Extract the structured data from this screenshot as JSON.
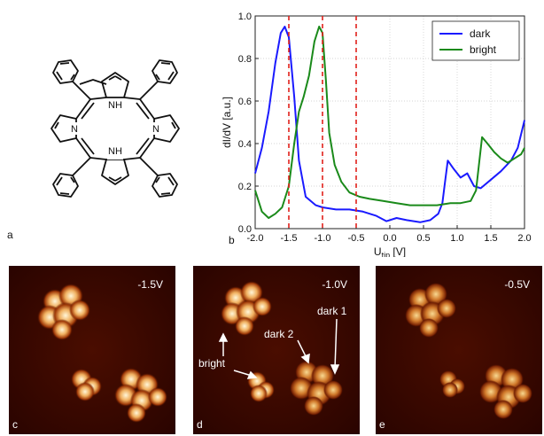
{
  "panels": {
    "a": "a",
    "b": "b",
    "c": "c",
    "d": "d",
    "e": "e"
  },
  "molecule": {
    "nh_top": "N\nH",
    "nh_bottom": "N\nH",
    "n_left": "N",
    "n_right": "N",
    "nh_label": "NH",
    "n_label": "N"
  },
  "chart_data": {
    "type": "line",
    "xlabel_main": "U",
    "xlabel_sub": "tip",
    "xlabel_unit": " [V]",
    "ylabel": "dI/dV [a.u.]",
    "xlim": [
      -2.0,
      2.0
    ],
    "ylim": [
      0.0,
      1.0
    ],
    "xticks": [
      "-2.0",
      "-1.5",
      "-1.0",
      "-0.5",
      "0.0",
      "0.5",
      "1.0",
      "1.5",
      "2.0"
    ],
    "yticks": [
      "0.0",
      "0.2",
      "0.4",
      "0.6",
      "0.8",
      "1.0"
    ],
    "grid": true,
    "legend_position": "top-right",
    "vlines": [
      -1.5,
      -1.0,
      -0.5
    ],
    "series": [
      {
        "name": "dark",
        "color": "#1a1aff",
        "points": [
          [
            -2.0,
            0.26
          ],
          [
            -1.9,
            0.38
          ],
          [
            -1.8,
            0.55
          ],
          [
            -1.7,
            0.78
          ],
          [
            -1.62,
            0.92
          ],
          [
            -1.56,
            0.95
          ],
          [
            -1.5,
            0.9
          ],
          [
            -1.42,
            0.62
          ],
          [
            -1.35,
            0.32
          ],
          [
            -1.25,
            0.15
          ],
          [
            -1.1,
            0.11
          ],
          [
            -1.0,
            0.1
          ],
          [
            -0.8,
            0.09
          ],
          [
            -0.6,
            0.09
          ],
          [
            -0.4,
            0.08
          ],
          [
            -0.2,
            0.06
          ],
          [
            -0.05,
            0.035
          ],
          [
            0.1,
            0.05
          ],
          [
            0.25,
            0.04
          ],
          [
            0.45,
            0.03
          ],
          [
            0.6,
            0.04
          ],
          [
            0.72,
            0.07
          ],
          [
            0.78,
            0.12
          ],
          [
            0.82,
            0.22
          ],
          [
            0.86,
            0.32
          ],
          [
            0.95,
            0.28
          ],
          [
            1.05,
            0.24
          ],
          [
            1.15,
            0.26
          ],
          [
            1.25,
            0.2
          ],
          [
            1.35,
            0.19
          ],
          [
            1.5,
            0.23
          ],
          [
            1.65,
            0.27
          ],
          [
            1.8,
            0.32
          ],
          [
            1.9,
            0.38
          ],
          [
            2.0,
            0.51
          ]
        ]
      },
      {
        "name": "bright",
        "color": "#1a8a1a",
        "points": [
          [
            -2.0,
            0.18
          ],
          [
            -1.9,
            0.08
          ],
          [
            -1.8,
            0.05
          ],
          [
            -1.7,
            0.07
          ],
          [
            -1.6,
            0.1
          ],
          [
            -1.5,
            0.2
          ],
          [
            -1.42,
            0.4
          ],
          [
            -1.35,
            0.55
          ],
          [
            -1.28,
            0.62
          ],
          [
            -1.2,
            0.72
          ],
          [
            -1.12,
            0.88
          ],
          [
            -1.05,
            0.95
          ],
          [
            -1.0,
            0.92
          ],
          [
            -0.95,
            0.7
          ],
          [
            -0.9,
            0.45
          ],
          [
            -0.82,
            0.3
          ],
          [
            -0.72,
            0.22
          ],
          [
            -0.6,
            0.17
          ],
          [
            -0.45,
            0.15
          ],
          [
            -0.3,
            0.14
          ],
          [
            -0.1,
            0.13
          ],
          [
            0.1,
            0.12
          ],
          [
            0.3,
            0.11
          ],
          [
            0.5,
            0.11
          ],
          [
            0.7,
            0.11
          ],
          [
            0.9,
            0.12
          ],
          [
            1.05,
            0.12
          ],
          [
            1.2,
            0.13
          ],
          [
            1.28,
            0.18
          ],
          [
            1.33,
            0.32
          ],
          [
            1.37,
            0.43
          ],
          [
            1.45,
            0.4
          ],
          [
            1.55,
            0.36
          ],
          [
            1.65,
            0.33
          ],
          [
            1.75,
            0.31
          ],
          [
            1.85,
            0.33
          ],
          [
            1.95,
            0.35
          ],
          [
            2.0,
            0.38
          ]
        ]
      }
    ]
  },
  "images": {
    "c": {
      "voltage": "-1.5V"
    },
    "d": {
      "voltage": "-1.0V",
      "bright": "bright",
      "dark1": "dark 1",
      "dark2": "dark 2"
    },
    "e": {
      "voltage": "-0.5V"
    }
  }
}
